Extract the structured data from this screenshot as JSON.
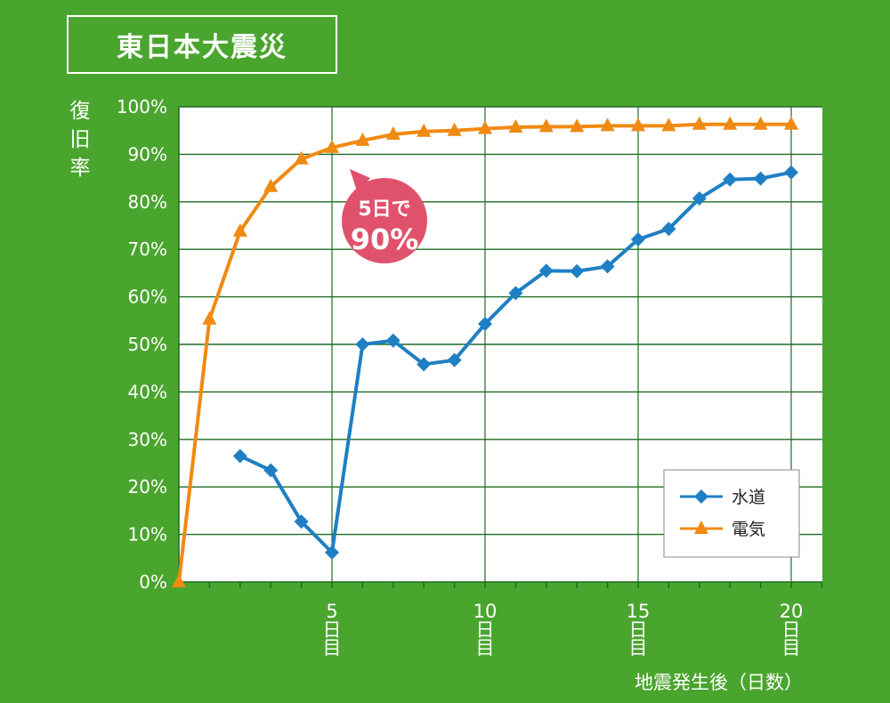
{
  "title": "東日本大震災",
  "chart_data": {
    "type": "line",
    "ylabel": "復旧率",
    "xlabel": "地震発生後（日数）",
    "yticks": [
      "0%",
      "10%",
      "20%",
      "30%",
      "40%",
      "50%",
      "60%",
      "70%",
      "80%",
      "90%",
      "100%"
    ],
    "ylim": [
      0,
      100
    ],
    "xlim": [
      0,
      21
    ],
    "xticks": [
      {
        "num": "5",
        "label": "日目",
        "x": 5
      },
      {
        "num": "10",
        "label": "日目",
        "x": 10
      },
      {
        "num": "15",
        "label": "日目",
        "x": 15
      },
      {
        "num": "20",
        "label": "日目",
        "x": 20
      }
    ],
    "grid": true,
    "legend_position": "bottom-right",
    "series": [
      {
        "name": "水道",
        "color": "#1f7fc4",
        "marker": "diamond",
        "x": [
          2,
          3,
          4,
          5,
          6,
          7,
          8,
          9,
          10,
          11,
          12,
          13,
          14,
          15,
          16,
          17,
          18,
          19,
          20
        ],
        "values": [
          26.5,
          23.5,
          12.7,
          6.2,
          50.0,
          50.8,
          45.8,
          46.7,
          54.3,
          60.8,
          65.5,
          65.4,
          66.4,
          72.1,
          74.3,
          80.7,
          84.7,
          84.9,
          86.2
        ]
      },
      {
        "name": "電気",
        "color": "#f08a12",
        "marker": "triangle",
        "x": [
          0,
          1,
          2,
          3,
          4,
          5,
          6,
          7,
          8,
          9,
          10,
          11,
          12,
          13,
          14,
          15,
          16,
          17,
          18,
          19,
          20
        ],
        "values": [
          0,
          55.3,
          73.8,
          83.2,
          89.0,
          91.4,
          92.9,
          94.2,
          94.8,
          95.0,
          95.4,
          95.7,
          95.8,
          95.8,
          96.0,
          96.0,
          96.0,
          96.3,
          96.3,
          96.3,
          96.3
        ]
      }
    ],
    "annotation": {
      "line1": "5日で",
      "line2": "90%",
      "color": "#e0526c"
    }
  }
}
